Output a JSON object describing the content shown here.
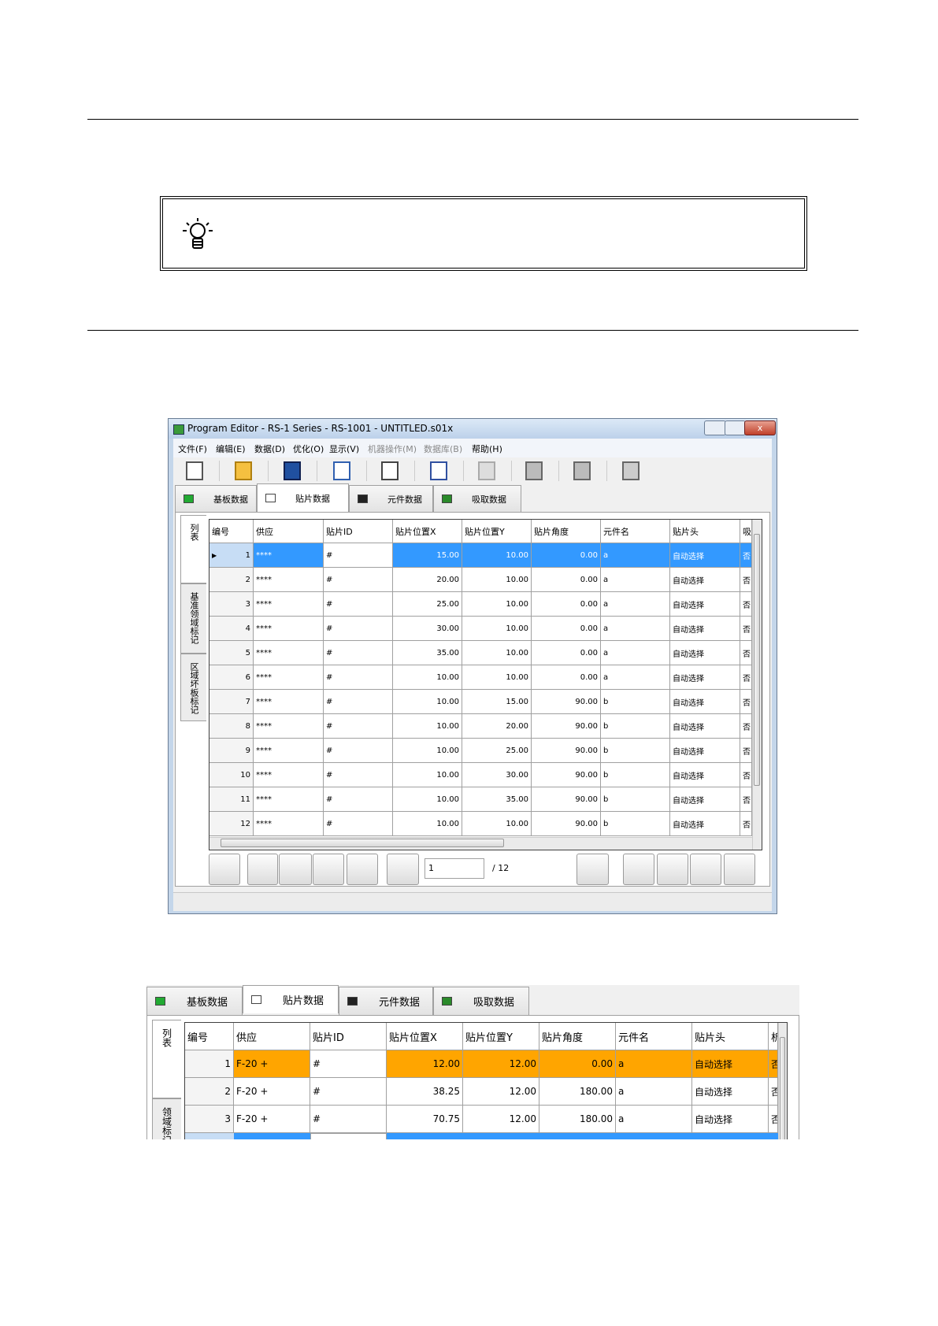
{
  "window": {
    "title": "Program Editor - RS-1 Series - RS-1001 - UNTITLED.s01x",
    "menu": [
      "文件(F)",
      "编辑(E)",
      "数据(D)",
      "优化(O)",
      "显示(V)",
      "机器操作(M)",
      "数据库(B)",
      "帮助(H)"
    ],
    "tabs": [
      "基板数据",
      "贴片数据",
      "元件数据",
      "吸取数据"
    ],
    "side_tabs": [
      "列表",
      "基准领域标记",
      "区域坏板标记"
    ],
    "table": {
      "headers": [
        "编号",
        "供应",
        "贴片ID",
        "贴片位置X",
        "贴片位置Y",
        "贴片角度",
        "元件名",
        "贴片头",
        "吸"
      ],
      "rows": [
        [
          1,
          "****",
          "#",
          "15.00",
          "10.00",
          "0.00",
          "a",
          "自动选择",
          "否"
        ],
        [
          2,
          "****",
          "#",
          "20.00",
          "10.00",
          "0.00",
          "a",
          "自动选择",
          "否"
        ],
        [
          3,
          "****",
          "#",
          "25.00",
          "10.00",
          "0.00",
          "a",
          "自动选择",
          "否"
        ],
        [
          4,
          "****",
          "#",
          "30.00",
          "10.00",
          "0.00",
          "a",
          "自动选择",
          "否"
        ],
        [
          5,
          "****",
          "#",
          "35.00",
          "10.00",
          "0.00",
          "a",
          "自动选择",
          "否"
        ],
        [
          6,
          "****",
          "#",
          "10.00",
          "10.00",
          "0.00",
          "a",
          "自动选择",
          "否"
        ],
        [
          7,
          "****",
          "#",
          "10.00",
          "15.00",
          "90.00",
          "b",
          "自动选择",
          "否"
        ],
        [
          8,
          "****",
          "#",
          "10.00",
          "20.00",
          "90.00",
          "b",
          "自动选择",
          "否"
        ],
        [
          9,
          "****",
          "#",
          "10.00",
          "25.00",
          "90.00",
          "b",
          "自动选择",
          "否"
        ],
        [
          10,
          "****",
          "#",
          "10.00",
          "30.00",
          "90.00",
          "b",
          "自动选择",
          "否"
        ],
        [
          11,
          "****",
          "#",
          "10.00",
          "35.00",
          "90.00",
          "b",
          "自动选择",
          "否"
        ],
        [
          12,
          "****",
          "#",
          "10.00",
          "10.00",
          "90.00",
          "b",
          "自动选择",
          "否"
        ]
      ]
    },
    "page_input": "1",
    "page_total": "/ 12"
  },
  "window2": {
    "tabs": [
      "基板数据",
      "贴片数据",
      "元件数据",
      "吸取数据"
    ],
    "side_tabs": [
      "列表",
      "领域标记"
    ],
    "table": {
      "headers": [
        "编号",
        "供应",
        "贴片ID",
        "贴片位置X",
        "贴片位置Y",
        "贴片角度",
        "元件名",
        "贴片头",
        "析"
      ],
      "rows": [
        [
          1,
          "F-20 +",
          "#",
          "12.00",
          "12.00",
          "0.00",
          "a",
          "自动选择",
          "否"
        ],
        [
          2,
          "F-20 +",
          "#",
          "38.25",
          "12.00",
          "180.00",
          "a",
          "自动选择",
          "否"
        ],
        [
          3,
          "F-20 +",
          "#",
          "70.75",
          "12.00",
          "180.00",
          "a",
          "自动选择",
          "否"
        ]
      ]
    }
  }
}
